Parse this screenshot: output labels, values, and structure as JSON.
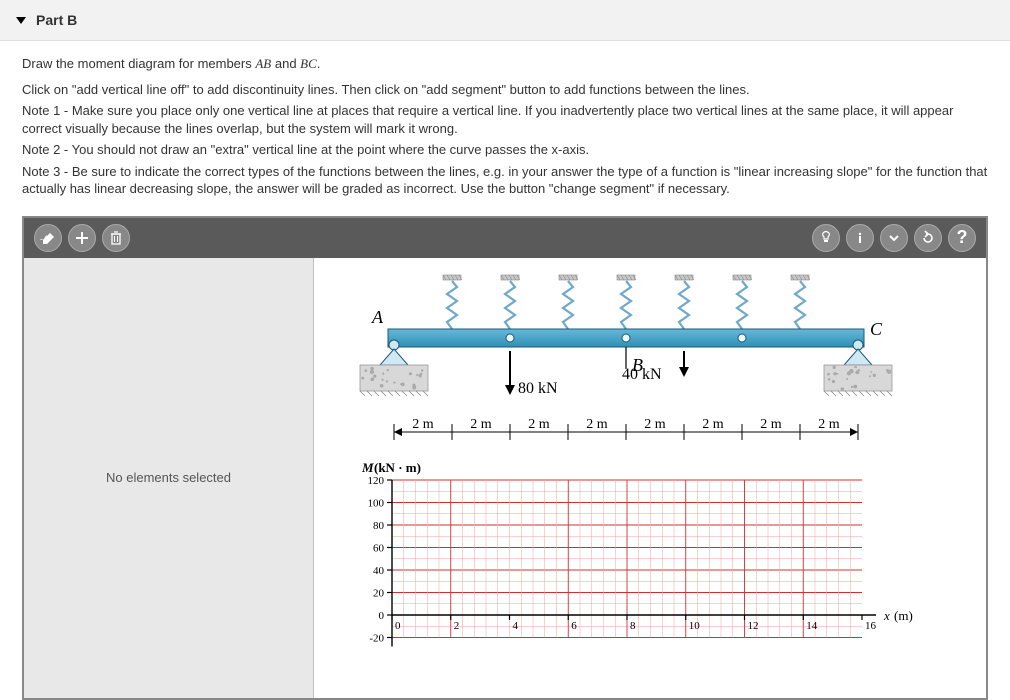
{
  "header": {
    "part_label": "Part B"
  },
  "instructions": {
    "main": "Draw the moment diagram for members ",
    "seg1": "AB",
    "and": " and ",
    "seg2": "BC",
    "period": ".",
    "line1": "Click on \"add vertical line off\" to add discontinuity lines. Then click on \"add segment\" button to add functions between the lines.",
    "note1": "Note 1 - Make sure you place only one vertical line at places that require a vertical line. If you inadvertently place two vertical lines at the same place, it will appear correct visually because the lines overlap, but the system will mark it wrong.",
    "note2": "Note 2 - You should not draw an \"extra\" vertical line at the point where the curve passes the x-axis.",
    "note3": "Note 3 - Be sure to indicate the correct types of the functions between the lines, e.g. in your answer the type of a function is \"linear increasing slope\" for the function that actually has linear decreasing slope, the answer will be graded as incorrect. Use the button \"change segment\" if necessary."
  },
  "sidepanel": {
    "empty_text": "No elements selected"
  },
  "beam": {
    "type": "infographic",
    "labels": {
      "A": "A",
      "B": "B",
      "C": "C"
    },
    "loads": {
      "p1": "80 kN",
      "p2": "40 kN"
    },
    "dim_labels": [
      "2 m",
      "2 m",
      "2 m",
      "2 m",
      "2 m",
      "2 m",
      "2 m",
      "2 m"
    ],
    "beam_color_top": "#68b8d8",
    "beam_color_bottom": "#2f8fb5",
    "spring_color": "#6fa8c8",
    "support_fill": "#d8d8d8",
    "label_fontsize": 18,
    "load_fontsize": 16,
    "dim_fontsize": 14
  },
  "chart": {
    "type": "line",
    "ylabel": "M (kN · m)",
    "xlabel": "x (m)",
    "label_fontsize": 13,
    "tick_fontsize": 11,
    "xlim": [
      0,
      16
    ],
    "xtick_step": 2,
    "ylim": [
      -40,
      120
    ],
    "ytick_step": 20,
    "yticks": [
      120,
      100,
      80,
      60,
      40,
      20,
      0,
      -20
    ],
    "xticks": [
      0,
      2,
      4,
      6,
      8,
      10,
      12,
      14,
      16
    ],
    "grid_color_major": "#d03030",
    "grid_color_minor": "#f0a0a0",
    "axis_color": "#000000",
    "background_color": "#ffffff"
  }
}
